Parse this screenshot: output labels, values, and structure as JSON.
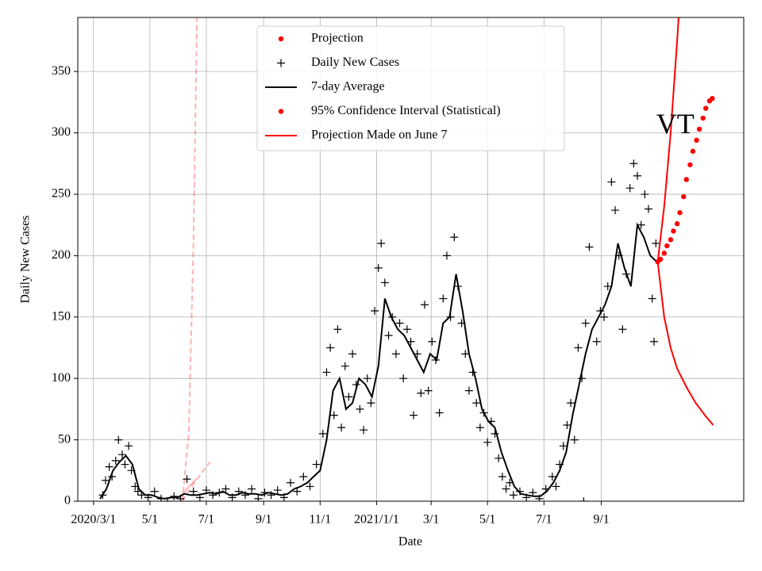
{
  "chart_data": {
    "type": "line",
    "xlabel": "Date",
    "ylabel": "Daily New Cases",
    "annotation": {
      "text": "VT",
      "x": "2021-11-20",
      "y": 305
    },
    "xlim": [
      "2020-02-13",
      "2022-02-02"
    ],
    "ylim": [
      0,
      394
    ],
    "yticks": [
      0,
      50,
      100,
      150,
      200,
      250,
      300,
      350
    ],
    "xticks": [
      {
        "value": "2020-03-01",
        "label": "2020/3/1"
      },
      {
        "value": "2020-05-01",
        "label": "5/1"
      },
      {
        "value": "2020-07-01",
        "label": "7/1"
      },
      {
        "value": "2020-09-01",
        "label": "9/1"
      },
      {
        "value": "2020-11-01",
        "label": "11/1"
      },
      {
        "value": "2021-01-01",
        "label": "2021/1/1"
      },
      {
        "value": "2021-03-01",
        "label": "3/1"
      },
      {
        "value": "2021-05-01",
        "label": "5/1"
      },
      {
        "value": "2021-07-01",
        "label": "7/1"
      },
      {
        "value": "2021-09-01",
        "label": "9/1"
      }
    ],
    "grid": true,
    "legend": "top",
    "series": [
      {
        "name": "Projection",
        "color": "#ff0000",
        "marker": "dot",
        "draw": "dots",
        "x": [
          "2021-11-01",
          "2021-11-04",
          "2021-11-08",
          "2021-11-11",
          "2021-11-15",
          "2021-11-18",
          "2021-11-22",
          "2021-11-25",
          "2021-11-29",
          "2021-12-02",
          "2021-12-06",
          "2021-12-09",
          "2021-12-13",
          "2021-12-16",
          "2021-12-20",
          "2021-12-23",
          "2021-12-27",
          "2021-12-30"
        ],
        "values": [
          195,
          197,
          202,
          208,
          213,
          220,
          226,
          235,
          248,
          262,
          274,
          285,
          294,
          303,
          312,
          320,
          326,
          328
        ]
      },
      {
        "name": "Daily New Cases",
        "color": "#000000",
        "marker": "plus",
        "draw": "plus",
        "x": [
          "2020-03-11",
          "2020-03-14",
          "2020-03-18",
          "2020-03-21",
          "2020-03-25",
          "2020-03-28",
          "2020-04-01",
          "2020-04-04",
          "2020-04-08",
          "2020-04-11",
          "2020-04-15",
          "2020-04-18",
          "2020-04-22",
          "2020-04-29",
          "2020-05-06",
          "2020-05-13",
          "2020-05-20",
          "2020-05-27",
          "2020-06-03",
          "2020-06-10",
          "2020-06-17",
          "2020-06-24",
          "2020-07-01",
          "2020-07-08",
          "2020-07-15",
          "2020-07-22",
          "2020-07-29",
          "2020-08-05",
          "2020-08-12",
          "2020-08-19",
          "2020-08-26",
          "2020-09-02",
          "2020-09-09",
          "2020-09-16",
          "2020-09-23",
          "2020-09-30",
          "2020-10-07",
          "2020-10-14",
          "2020-10-21",
          "2020-10-28",
          "2020-11-04",
          "2020-11-08",
          "2020-11-12",
          "2020-11-16",
          "2020-11-20",
          "2020-11-24",
          "2020-11-28",
          "2020-12-02",
          "2020-12-06",
          "2020-12-10",
          "2020-12-14",
          "2020-12-18",
          "2020-12-22",
          "2020-12-26",
          "2020-12-30",
          "2021-01-03",
          "2021-01-06",
          "2021-01-10",
          "2021-01-14",
          "2021-01-18",
          "2021-01-22",
          "2021-01-26",
          "2021-01-30",
          "2021-02-03",
          "2021-02-07",
          "2021-02-10",
          "2021-02-14",
          "2021-02-18",
          "2021-02-22",
          "2021-02-26",
          "2021-03-02",
          "2021-03-06",
          "2021-03-10",
          "2021-03-14",
          "2021-03-18",
          "2021-03-22",
          "2021-03-26",
          "2021-03-30",
          "2021-04-03",
          "2021-04-07",
          "2021-04-11",
          "2021-04-15",
          "2021-04-19",
          "2021-04-23",
          "2021-04-27",
          "2021-05-01",
          "2021-05-05",
          "2021-05-09",
          "2021-05-13",
          "2021-05-17",
          "2021-05-21",
          "2021-05-25",
          "2021-05-29",
          "2021-06-05",
          "2021-06-12",
          "2021-06-19",
          "2021-06-26",
          "2021-07-03",
          "2021-07-10",
          "2021-07-14",
          "2021-07-18",
          "2021-07-22",
          "2021-07-26",
          "2021-07-30",
          "2021-08-03",
          "2021-08-07",
          "2021-08-11",
          "2021-08-15",
          "2021-08-19",
          "2021-08-13",
          "2021-08-27",
          "2021-08-31",
          "2021-09-04",
          "2021-09-08",
          "2021-09-12",
          "2021-09-16",
          "2021-09-20",
          "2021-09-24",
          "2021-09-28",
          "2021-10-02",
          "2021-10-06",
          "2021-10-10",
          "2021-10-14",
          "2021-10-18",
          "2021-10-22",
          "2021-10-26",
          "2021-10-28",
          "2021-10-30"
        ],
        "values": [
          5,
          17,
          28,
          20,
          33,
          50,
          38,
          30,
          45,
          25,
          12,
          8,
          5,
          3,
          8,
          2,
          0,
          4,
          2,
          18,
          8,
          3,
          9,
          5,
          7,
          10,
          3,
          8,
          5,
          10,
          2,
          7,
          5,
          9,
          3,
          15,
          8,
          20,
          12,
          30,
          55,
          105,
          125,
          70,
          140,
          60,
          110,
          85,
          120,
          95,
          75,
          58,
          100,
          80,
          155,
          190,
          210,
          178,
          135,
          150,
          120,
          145,
          100,
          140,
          130,
          70,
          120,
          88,
          160,
          90,
          130,
          115,
          72,
          165,
          200,
          150,
          215,
          175,
          145,
          120,
          90,
          105,
          80,
          60,
          72,
          48,
          65,
          55,
          35,
          20,
          10,
          15,
          5,
          8,
          3,
          7,
          2,
          10,
          20,
          12,
          30,
          45,
          62,
          80,
          50,
          125,
          100,
          145,
          207,
          0,
          130,
          155,
          150,
          175,
          260,
          237,
          200,
          140,
          185,
          255,
          275,
          265,
          225,
          250,
          238,
          165,
          130,
          210
        ]
      },
      {
        "name": "7-day Average",
        "color": "#000000",
        "marker": "line",
        "draw": "line",
        "x": [
          "2020-03-08",
          "2020-03-15",
          "2020-03-22",
          "2020-03-29",
          "2020-04-05",
          "2020-04-12",
          "2020-04-19",
          "2020-04-26",
          "2020-05-03",
          "2020-05-10",
          "2020-05-17",
          "2020-05-24",
          "2020-05-31",
          "2020-06-07",
          "2020-06-14",
          "2020-06-21",
          "2020-06-28",
          "2020-07-05",
          "2020-07-12",
          "2020-07-19",
          "2020-07-26",
          "2020-08-02",
          "2020-08-09",
          "2020-08-16",
          "2020-08-23",
          "2020-08-30",
          "2020-09-06",
          "2020-09-13",
          "2020-09-20",
          "2020-09-27",
          "2020-10-04",
          "2020-10-11",
          "2020-10-18",
          "2020-10-25",
          "2020-11-01",
          "2020-11-08",
          "2020-11-15",
          "2020-11-22",
          "2020-11-29",
          "2020-12-06",
          "2020-12-13",
          "2020-12-20",
          "2020-12-27",
          "2021-01-03",
          "2021-01-10",
          "2021-01-17",
          "2021-01-24",
          "2021-01-31",
          "2021-02-07",
          "2021-02-14",
          "2021-02-21",
          "2021-02-28",
          "2021-03-07",
          "2021-03-14",
          "2021-03-21",
          "2021-03-28",
          "2021-04-04",
          "2021-04-11",
          "2021-04-18",
          "2021-04-25",
          "2021-05-02",
          "2021-05-09",
          "2021-05-16",
          "2021-05-23",
          "2021-05-30",
          "2021-06-06",
          "2021-06-13",
          "2021-06-20",
          "2021-06-27",
          "2021-07-04",
          "2021-07-11",
          "2021-07-18",
          "2021-07-25",
          "2021-08-01",
          "2021-08-08",
          "2021-08-15",
          "2021-08-22",
          "2021-08-29",
          "2021-09-05",
          "2021-09-12",
          "2021-09-19",
          "2021-09-26",
          "2021-10-03",
          "2021-10-10",
          "2021-10-17",
          "2021-10-24",
          "2021-10-31"
        ],
        "values": [
          2,
          10,
          25,
          32,
          37,
          30,
          10,
          5,
          5,
          3,
          2,
          3,
          3,
          6,
          5,
          5,
          6,
          7,
          6,
          8,
          5,
          5,
          7,
          6,
          6,
          5,
          7,
          6,
          5,
          6,
          10,
          12,
          15,
          20,
          25,
          50,
          90,
          100,
          75,
          80,
          100,
          95,
          85,
          110,
          165,
          150,
          140,
          135,
          125,
          115,
          105,
          120,
          115,
          145,
          150,
          185,
          155,
          120,
          100,
          75,
          65,
          60,
          40,
          25,
          12,
          6,
          5,
          4,
          4,
          8,
          15,
          25,
          40,
          70,
          95,
          120,
          140,
          150,
          160,
          175,
          210,
          190,
          175,
          225,
          215,
          200,
          195
        ]
      },
      {
        "name": "95% Confidence Interval (Statistical)",
        "color": "#ff0000",
        "marker": "dot",
        "draw": "band",
        "upper": {
          "x": [
            "2021-11-01",
            "2021-11-08",
            "2021-11-15",
            "2021-11-22",
            "2021-11-29"
          ],
          "values": [
            195,
            240,
            300,
            375,
            460
          ]
        },
        "lower": {
          "x": [
            "2021-11-01",
            "2021-11-08",
            "2021-11-15",
            "2021-11-22",
            "2021-12-02",
            "2021-12-12",
            "2021-12-22",
            "2021-12-31"
          ],
          "values": [
            195,
            150,
            125,
            108,
            93,
            80,
            70,
            62
          ]
        }
      },
      {
        "name": "Projection Made on June 7",
        "color": "#ff0000",
        "marker": "line",
        "draw": "faded",
        "opacity": 0.3,
        "x": [
          "2020-06-05",
          "2020-06-10",
          "2020-06-15",
          "2020-06-20"
        ],
        "values": [
          5,
          10,
          14,
          18
        ],
        "upper": {
          "x": [
            "2020-06-05",
            "2020-06-12",
            "2020-06-17",
            "2020-06-21"
          ],
          "values": [
            0,
            55,
            210,
            400
          ]
        },
        "lower": {
          "x": [
            "2020-06-05",
            "2020-06-15",
            "2020-06-25",
            "2020-07-05"
          ],
          "values": [
            0,
            12,
            22,
            32
          ]
        }
      }
    ]
  }
}
